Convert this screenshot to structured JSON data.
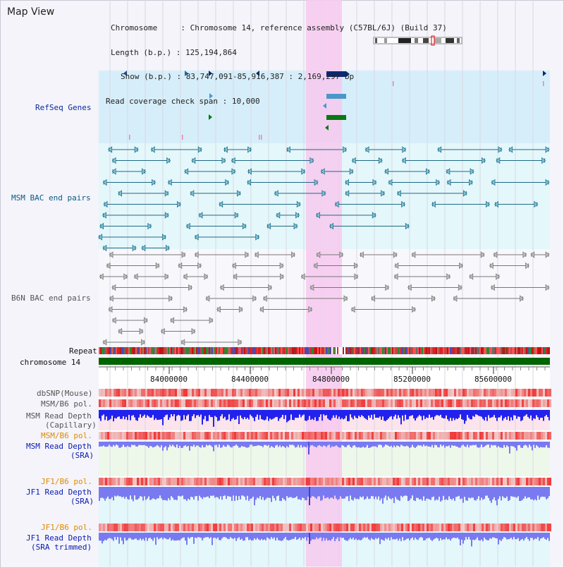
{
  "view_title": "Map View",
  "info": {
    "chromosome_label": "Chromosome",
    "chromosome_value": "Chromosome 14, reference assembly (C57BL/6J) (Build 37)",
    "length_label": "Length (b.p.)",
    "length_value": "125,194,864",
    "show_label": "Show (b.p.)",
    "show_value": "83,747,091-85,916,387 : 2,169,297 bp",
    "span_label": "Read coverage check span",
    "span_value": "10,000"
  },
  "tracks": {
    "refseq": "RefSeq Genes",
    "msm_bac": "MSM BAC end pairs",
    "b6n_bac": "B6N BAC end pairs",
    "repeat": "Repeat",
    "chromosome": "chromosome 14",
    "dbsnp": "dbSNP(Mouse)",
    "msm_b6_pol": "MSM/B6 pol.",
    "msm_depth_cap_1": "MSM Read Depth",
    "msm_depth_cap_2": "(Capillary)",
    "msm_b6_pol_2": "MSM/B6 pol.",
    "msm_depth_sra_1": "MSM Read Depth",
    "msm_depth_sra_2": "(SRA)",
    "jf1_b6_pol": "JF1/B6 pol.",
    "jf1_depth_sra_1": "JF1 Read Depth",
    "jf1_depth_sra_2": "(SRA)",
    "jf1_b6_pol_2": "JF1/B6 pol.",
    "jf1_depth_trim_1": "JF1 Read Depth",
    "jf1_depth_trim_2": "(SRA trimmed)"
  },
  "axis": {
    "ticks": [
      "84000000",
      "84400000",
      "84800000",
      "85200000",
      "85600000"
    ]
  },
  "colors": {
    "refseq_bg": "#d6eefa",
    "msm_bg": "#e4f7fb",
    "highlight": "#f7c9ee",
    "chromosome": "#006400",
    "depth_blue": "#2222ee",
    "depth_light": "#7a7af0",
    "pol_red": "#ee3333"
  }
}
